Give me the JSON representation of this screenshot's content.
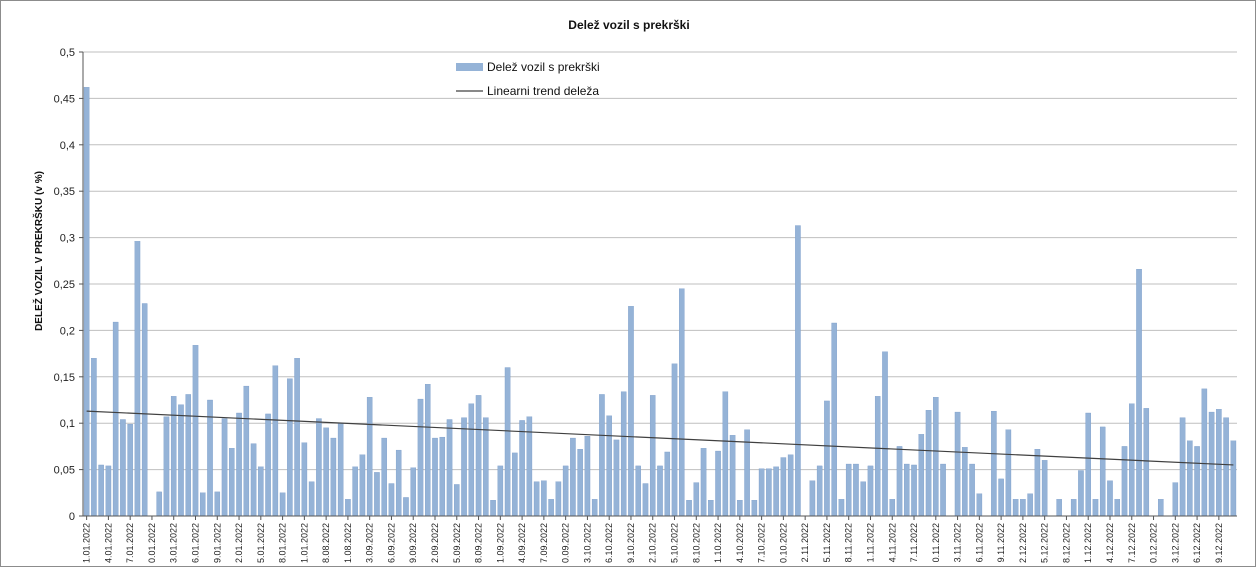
{
  "chart_data": {
    "type": "bar",
    "title": "Delež vozil s prekrški",
    "ylabel": "DELEŽ VOZIL V PREKRŠKU (v %)",
    "xlabel": "",
    "ylim": [
      0,
      0.5
    ],
    "yticks": [
      "0",
      "0,05",
      "0,1",
      "0,15",
      "0,2",
      "0,25",
      "0,3",
      "0,35",
      "0,4",
      "0,45",
      "0,5"
    ],
    "grid": true,
    "legend_position": "top-center",
    "colors": {
      "bar": "#95b3d7",
      "bar_edge": "#6f93c4",
      "trend": "#404040",
      "grid": "#bfbfbf"
    },
    "series": [
      {
        "name": "Delež vozil s prekrški",
        "kind": "bar",
        "values": [
          0.462,
          0.17,
          0.055,
          0.054,
          0.209,
          0.104,
          0.099,
          0.296,
          0.229,
          0.0,
          0.026,
          0.107,
          0.129,
          0.12,
          0.131,
          0.184,
          0.025,
          0.125,
          0.026,
          0.105,
          0.073,
          0.111,
          0.14,
          0.078,
          0.053,
          0.11,
          0.162,
          0.025,
          0.148,
          0.17,
          0.079,
          0.037,
          0.105,
          0.095,
          0.084,
          0.1,
          0.018,
          0.053,
          0.066,
          0.128,
          0.047,
          0.084,
          0.035,
          0.071,
          0.02,
          0.052,
          0.126,
          0.142,
          0.084,
          0.085,
          0.104,
          0.034,
          0.106,
          0.121,
          0.13,
          0.106,
          0.017,
          0.054,
          0.16,
          0.068,
          0.103,
          0.107,
          0.037,
          0.038,
          0.018,
          0.037,
          0.054,
          0.084,
          0.072,
          0.086,
          0.018,
          0.131,
          0.108,
          0.082,
          0.134,
          0.226,
          0.054,
          0.035,
          0.13,
          0.054,
          0.069,
          0.164,
          0.245,
          0.017,
          0.036,
          0.073,
          0.017,
          0.07,
          0.134,
          0.087,
          0.017,
          0.093,
          0.017,
          0.051,
          0.051,
          0.053,
          0.063,
          0.066,
          0.313,
          0.0,
          0.038,
          0.054,
          0.124,
          0.208,
          0.018,
          0.056,
          0.056,
          0.037,
          0.054,
          0.129,
          0.177,
          0.018,
          0.075,
          0.056,
          0.055,
          0.088,
          0.114,
          0.128,
          0.056,
          0.0,
          0.112,
          0.074,
          0.056,
          0.024,
          0.0,
          0.113,
          0.04,
          0.093,
          0.018,
          0.018,
          0.024,
          0.072,
          0.06,
          0.0,
          0.018,
          0.0,
          0.018,
          0.049,
          0.111,
          0.018,
          0.096,
          0.038,
          0.018,
          0.075,
          0.121,
          0.266,
          0.116,
          0.0,
          0.018,
          0.0,
          0.036,
          0.106,
          0.081,
          0.075,
          0.137,
          0.112,
          0.115,
          0.106,
          0.081
        ]
      },
      {
        "name": "Linearni trend deleža",
        "kind": "trend",
        "start": 0.113,
        "end": 0.055
      }
    ],
    "x_tick_labels": [
      "1.01.2022",
      "4.01.2022",
      "7.01.2022",
      "0.01.2022",
      "3.01.2022",
      "6.01.2022",
      "9.01.2022",
      "2.01.2022",
      "5.01.2022",
      "8.01.2022",
      "1.01.2022",
      "8.08.2022",
      "1.08.2022",
      "3.09.2022",
      "6.09.2022",
      "9.09.2022",
      "2.09.2022",
      "5.09.2022",
      "8.09.2022",
      "1.09.2022",
      "4.09.2022",
      "7.09.2022",
      "0.09.2022",
      "3.10.2022",
      "6.10.2022",
      "9.10.2022",
      "2.10.2022",
      "5.10.2022",
      "8.10.2022",
      "1.10.2022",
      "4.10.2022",
      "7.10.2022",
      "0.10.2022",
      "2.11.2022",
      "5.11.2022",
      "8.11.2022",
      "1.11.2022",
      "4.11.2022",
      "7.11.2022",
      "0.11.2022",
      "3.11.2022",
      "6.11.2022",
      "9.11.2022",
      "2.12.2022",
      "5.12.2022",
      "8.12.2022",
      "1.12.2022",
      "4.12.2022",
      "7.12.2022",
      "0.12.2022",
      "3.12.2022",
      "6.12.2022",
      "9.12.2022"
    ]
  }
}
